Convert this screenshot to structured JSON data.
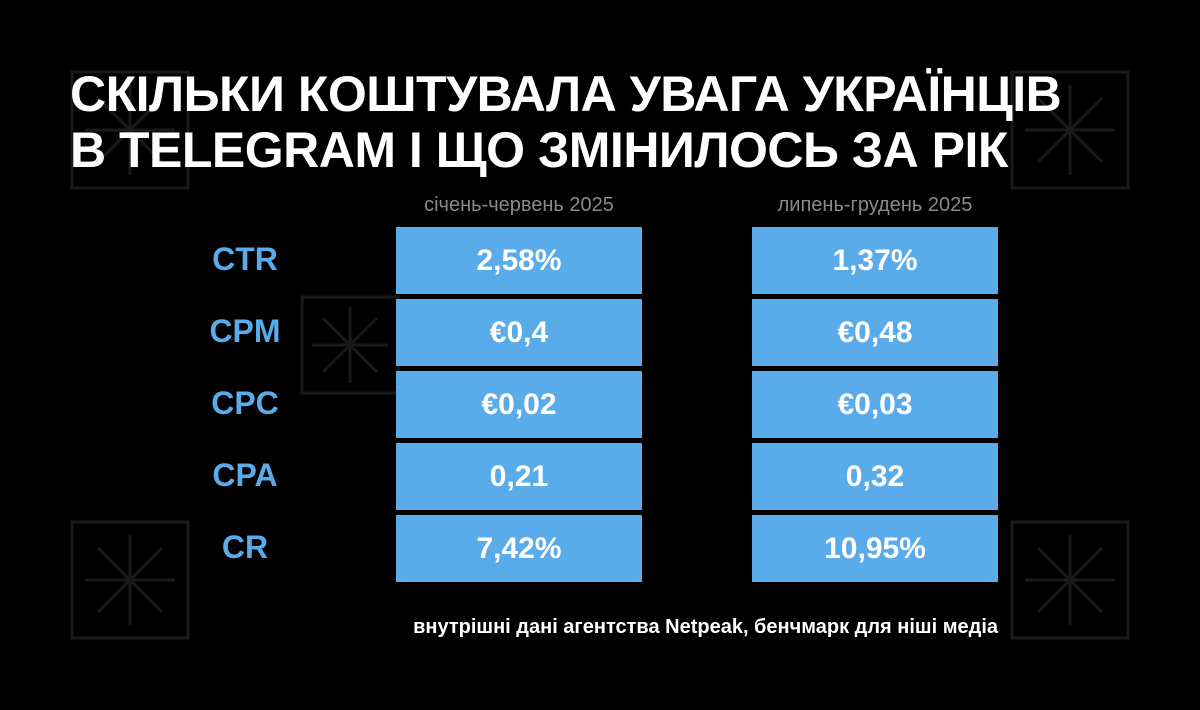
{
  "header": {
    "title": [
      "СКІЛЬКИ КОШТУВАЛА УВАГА УКРАЇНЦІВ",
      "В TELEGRAM І ЩО ЗМІНИЛОСЬ ЗА РІК"
    ]
  },
  "table": {
    "columns": [
      "січень-червень  2025",
      "липень-грудень 2025"
    ],
    "rows": [
      [
        "CTR",
        "2,58%",
        "1,37%"
      ],
      [
        "CPM",
        "€0,4",
        "€0,48"
      ],
      [
        "CPC",
        "€0,02",
        "€0,03"
      ],
      [
        "CPA",
        "0,21",
        "0,32"
      ],
      [
        "CR",
        "7,42%",
        "10,95%"
      ]
    ]
  },
  "footer": {
    "note": "внутрішні дані агентства Netpeak, бенчмарк для ніші медіа"
  }
}
